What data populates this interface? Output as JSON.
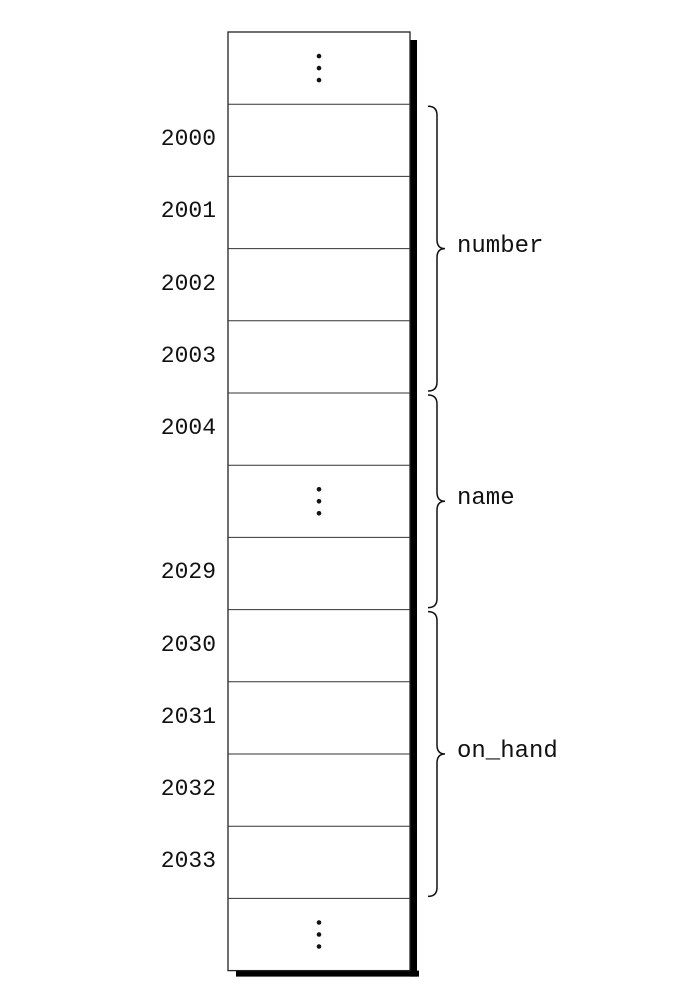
{
  "cells": [
    {
      "address": "",
      "ellipsis": true
    },
    {
      "address": "2000",
      "ellipsis": false
    },
    {
      "address": "2001",
      "ellipsis": false
    },
    {
      "address": "2002",
      "ellipsis": false
    },
    {
      "address": "2003",
      "ellipsis": false
    },
    {
      "address": "2004",
      "ellipsis": false
    },
    {
      "address": "",
      "ellipsis": true
    },
    {
      "address": "2029",
      "ellipsis": false
    },
    {
      "address": "2030",
      "ellipsis": false
    },
    {
      "address": "2031",
      "ellipsis": false
    },
    {
      "address": "2032",
      "ellipsis": false
    },
    {
      "address": "2033",
      "ellipsis": false
    },
    {
      "address": "",
      "ellipsis": true
    }
  ],
  "fields": [
    {
      "name": "number",
      "first_cell": 1,
      "last_cell": 4
    },
    {
      "name": "name",
      "first_cell": 5,
      "last_cell": 7
    },
    {
      "name": "on_hand",
      "first_cell": 8,
      "last_cell": 11
    }
  ]
}
